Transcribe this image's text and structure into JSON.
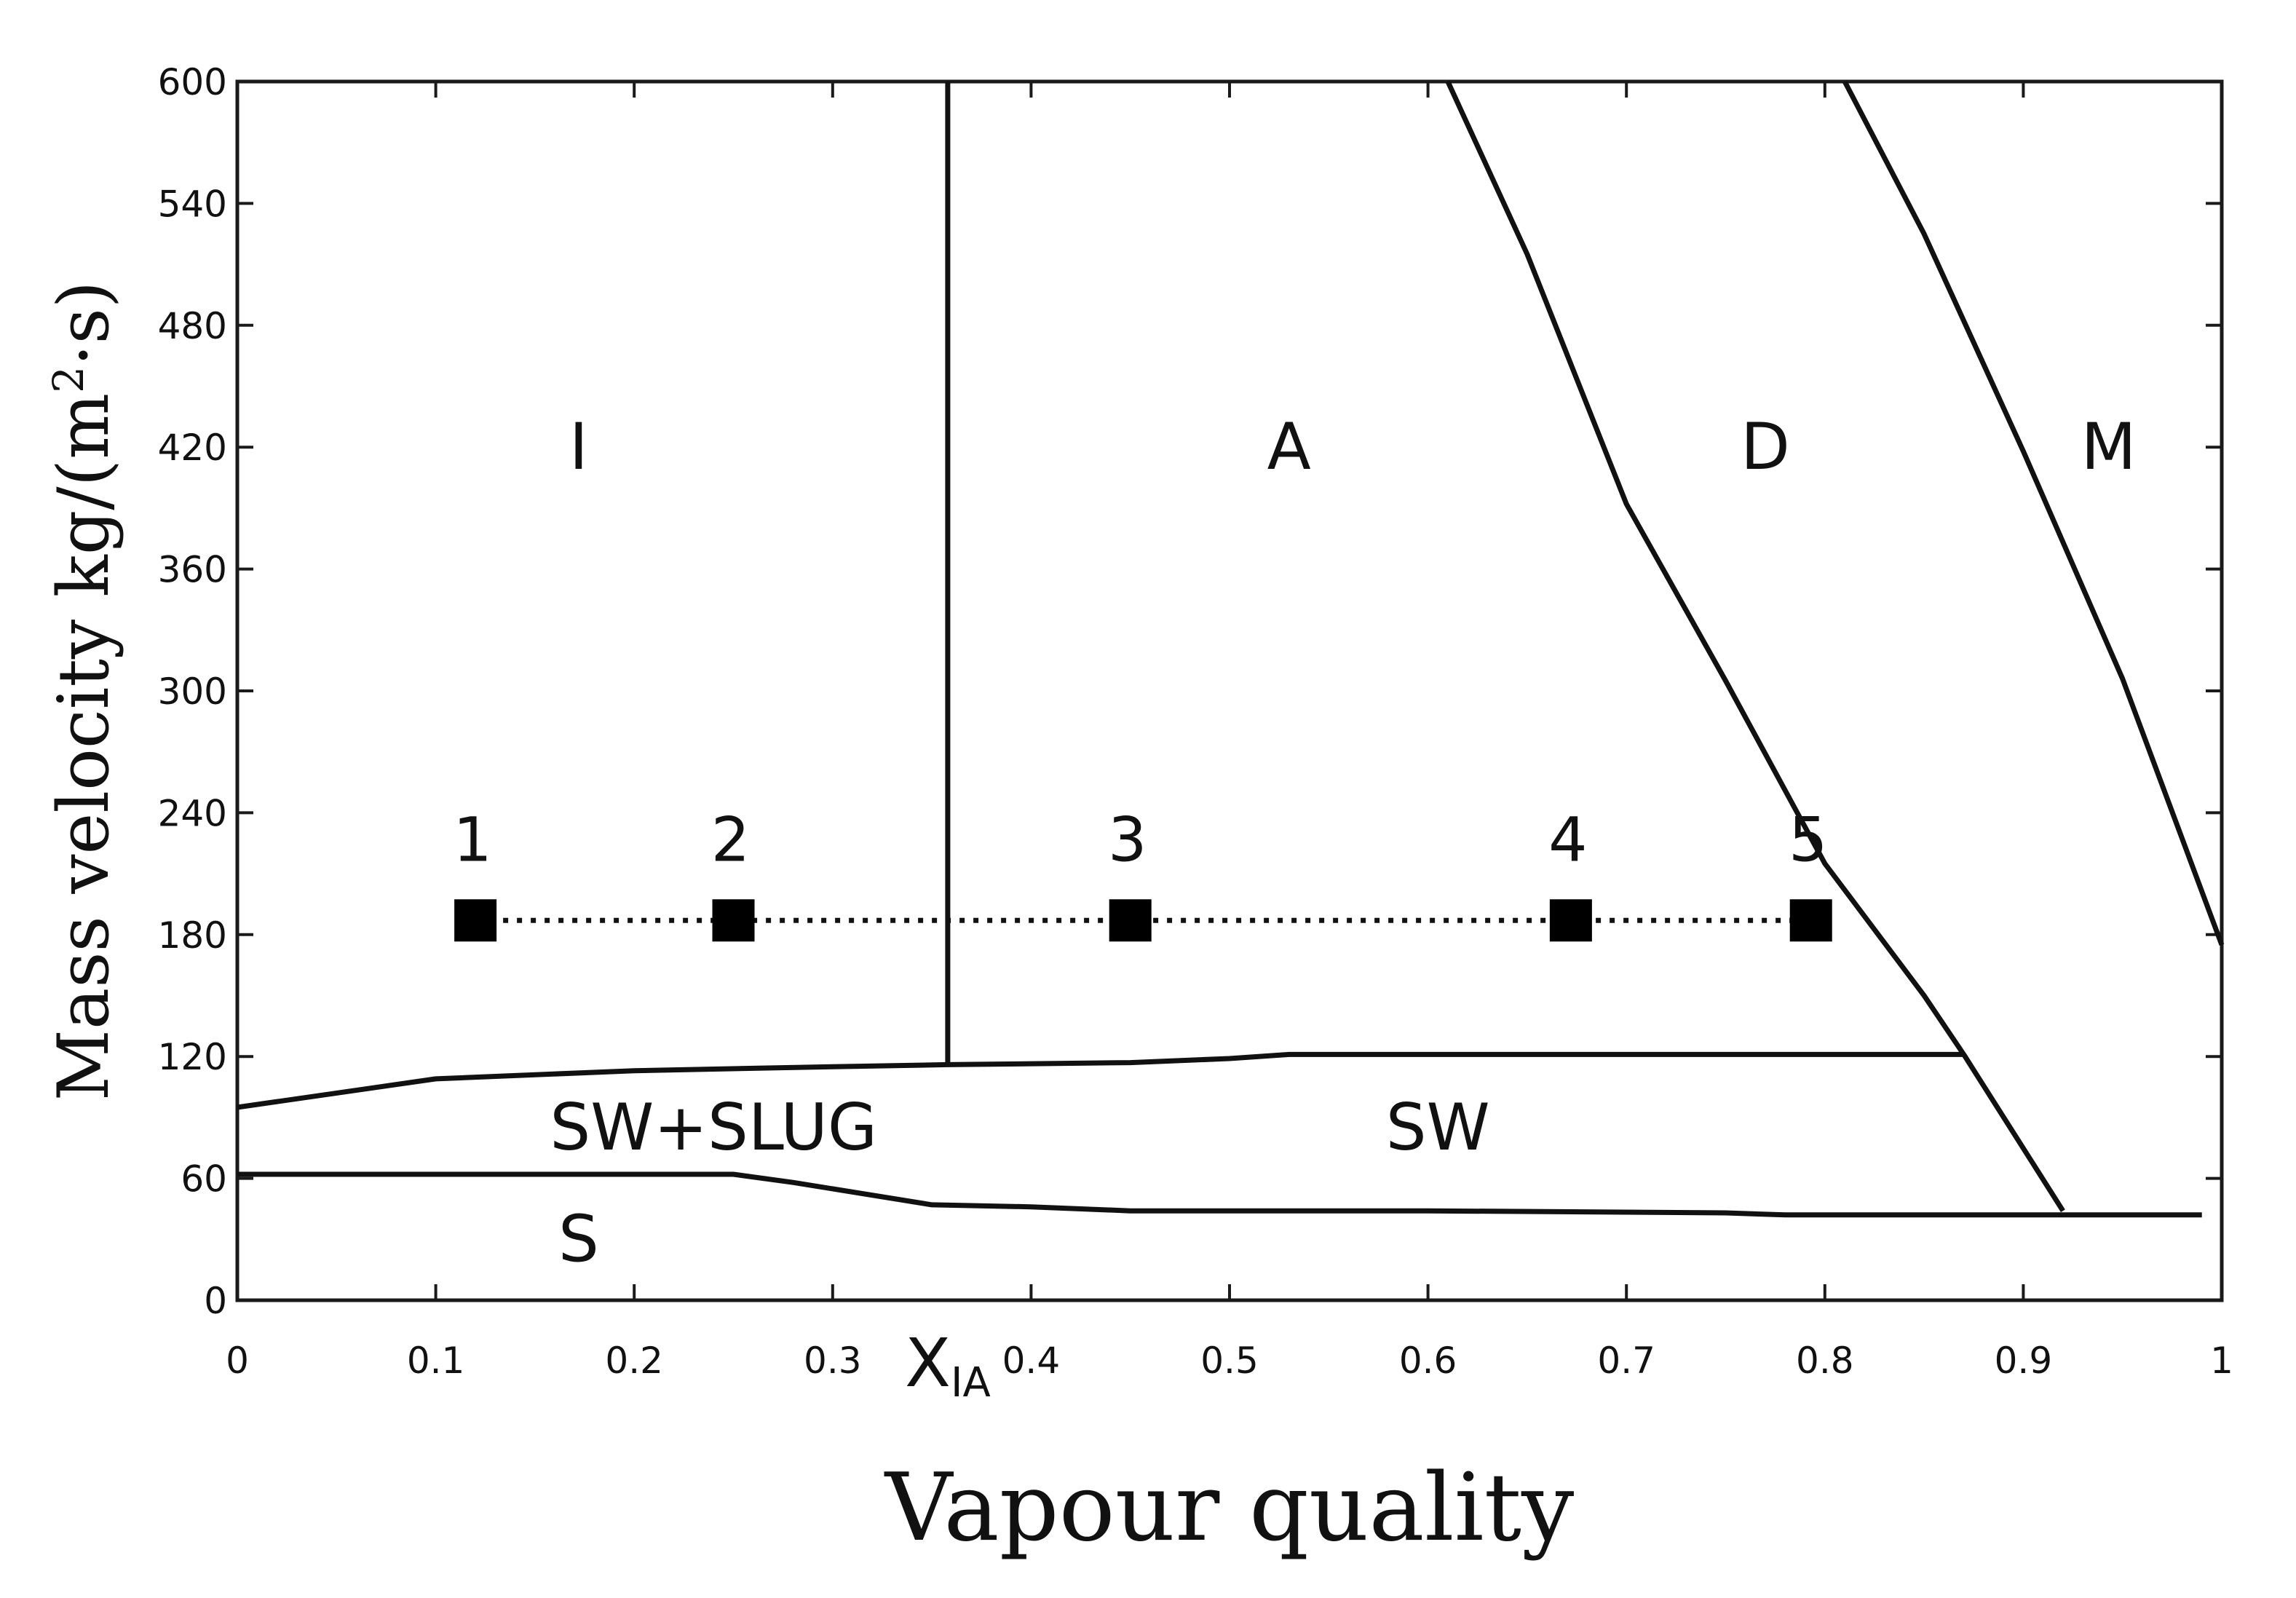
{
  "chart_data": {
    "type": "line",
    "xlabel": "Vapour quality",
    "ylabel_main": "Mass velocity kg/(m",
    "ylabel_sup": "2",
    "ylabel_end": "·s)",
    "xlim": [
      0,
      1
    ],
    "ylim": [
      0,
      600
    ],
    "x_ticks": [
      0,
      0.1,
      0.2,
      0.3,
      0.4,
      0.5,
      0.6,
      0.7,
      0.8,
      0.9,
      1
    ],
    "x_tick_labels": [
      "0",
      "0.1",
      "0.2",
      "0.3",
      "0.4",
      "0.5",
      "0.6",
      "0.7",
      "0.8",
      "0.9",
      "1"
    ],
    "y_ticks": [
      0,
      60,
      120,
      180,
      240,
      300,
      360,
      420,
      480,
      540,
      600
    ],
    "y_tick_labels": [
      "0",
      "60",
      "120",
      "180",
      "240",
      "300",
      "360",
      "420",
      "480",
      "540",
      "600"
    ],
    "annotation_xia": {
      "main": "X",
      "sub": "IA",
      "x": 0.358
    },
    "grid": false,
    "boundaries": [
      {
        "points": [
          [
            0,
            95
          ],
          [
            0.1,
            109
          ],
          [
            0.2,
            113
          ],
          [
            0.3,
            115
          ],
          [
            0.358,
            116
          ],
          [
            0.45,
            117
          ],
          [
            0.5,
            119
          ],
          [
            0.53,
            121
          ],
          [
            0.7,
            121
          ],
          [
            0.87,
            121
          ]
        ]
      },
      {
        "points": [
          [
            0,
            62
          ],
          [
            0.25,
            62
          ],
          [
            0.28,
            58
          ],
          [
            0.35,
            47
          ],
          [
            0.4,
            46
          ],
          [
            0.45,
            44
          ],
          [
            0.6,
            44
          ],
          [
            0.75,
            43
          ],
          [
            0.78,
            42
          ],
          [
            0.9,
            42
          ],
          [
            0.99,
            42
          ]
        ]
      },
      {
        "points": [
          [
            0.358,
            116
          ],
          [
            0.358,
            600
          ]
        ]
      },
      {
        "points": [
          [
            0.61,
            600
          ],
          [
            0.65,
            515
          ],
          [
            0.7,
            392
          ],
          [
            0.75,
            305
          ],
          [
            0.8,
            215
          ],
          [
            0.85,
            150
          ],
          [
            0.87,
            121
          ],
          [
            0.92,
            44
          ]
        ]
      },
      {
        "points": [
          [
            0.81,
            600
          ],
          [
            0.85,
            525
          ],
          [
            0.9,
            418
          ],
          [
            0.95,
            306
          ],
          [
            1.0,
            175
          ]
        ]
      }
    ],
    "regions": [
      {
        "label": "I",
        "x": 0.172,
        "y": 420
      },
      {
        "label": "A",
        "x": 0.53,
        "y": 420
      },
      {
        "label": "D",
        "x": 0.77,
        "y": 420
      },
      {
        "label": "M",
        "x": 0.943,
        "y": 420
      },
      {
        "label": "SW+SLUG",
        "x": 0.24,
        "y": 85
      },
      {
        "label": "SW",
        "x": 0.605,
        "y": 85
      },
      {
        "label": "S",
        "x": 0.172,
        "y": 30
      }
    ],
    "points": [
      {
        "label": "1",
        "x": 0.12,
        "y": 187
      },
      {
        "label": "2",
        "x": 0.25,
        "y": 187
      },
      {
        "label": "3",
        "x": 0.45,
        "y": 187
      },
      {
        "label": "4",
        "x": 0.672,
        "y": 187
      },
      {
        "label": "5",
        "x": 0.793,
        "y": 187
      }
    ]
  }
}
